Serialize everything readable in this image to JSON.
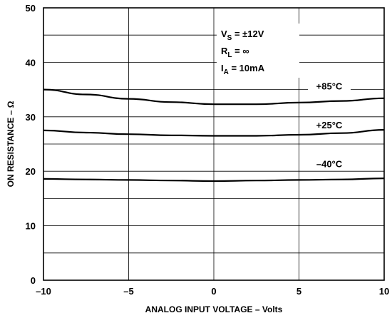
{
  "chart_data": {
    "type": "line",
    "xlabel": "ANALOG INPUT VOLTAGE – Volts",
    "ylabel": "ON RESISTANCE – Ω",
    "xlim": [
      -10,
      10
    ],
    "ylim": [
      0,
      50
    ],
    "x_ticks": [
      -10,
      -5,
      0,
      5,
      10
    ],
    "x_tick_labels": [
      "–10",
      "–5",
      "0",
      "5",
      "10"
    ],
    "y_ticks": [
      0,
      10,
      20,
      30,
      40,
      50
    ],
    "y_tick_labels": [
      "0",
      "10",
      "20",
      "30",
      "40",
      "50"
    ],
    "grid": true,
    "x_grid": [
      -5,
      0,
      5
    ],
    "y_grid": [
      5,
      10,
      15,
      20,
      25,
      30,
      35,
      40,
      45
    ],
    "conditions": {
      "vs": {
        "main": "V",
        "sub": "S",
        "rest": " = ±12V"
      },
      "rl": {
        "main": "R",
        "sub": "L",
        "rest": " = ∞"
      },
      "ia": {
        "main": "I",
        "sub": "A",
        "rest": " = 10mA"
      }
    },
    "series": [
      {
        "name": "+85°C",
        "x": [
          -10,
          -7.5,
          -5,
          -2.5,
          0,
          2.5,
          5,
          7.5,
          10
        ],
        "y": [
          35,
          34.1,
          33.3,
          32.7,
          32.3,
          32.3,
          32.6,
          32.9,
          33.4
        ]
      },
      {
        "name": "+25°C",
        "x": [
          -10,
          -7.5,
          -5,
          -2.5,
          0,
          2.5,
          5,
          7.5,
          10
        ],
        "y": [
          27.5,
          27.1,
          26.8,
          26.6,
          26.5,
          26.5,
          26.7,
          27.0,
          27.6
        ]
      },
      {
        "name": "–40°C",
        "x": [
          -10,
          -7.5,
          -5,
          -2.5,
          0,
          2.5,
          5,
          7.5,
          10
        ],
        "y": [
          18.6,
          18.5,
          18.4,
          18.3,
          18.2,
          18.3,
          18.4,
          18.5,
          18.7
        ]
      }
    ]
  }
}
